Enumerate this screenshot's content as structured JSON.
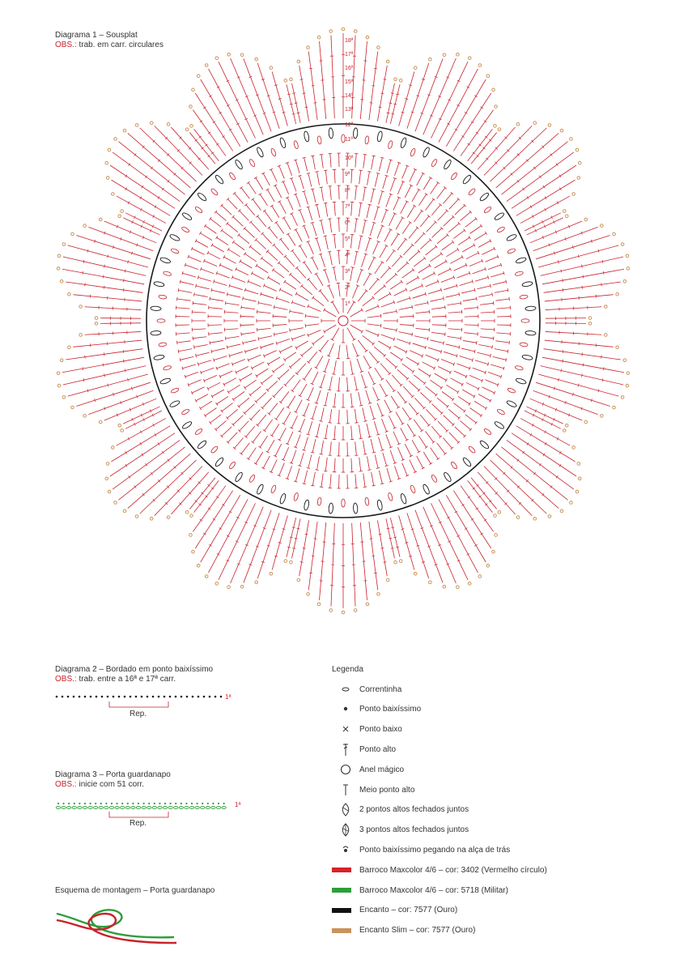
{
  "diagram1": {
    "title": "Diagrama 1 – Sousplat",
    "obs_label": "OBS.:",
    "obs_text": " trab. em carr. circulares",
    "round_labels": [
      "1ª",
      "2ª",
      "3ª",
      "4ª",
      "5ª",
      "6ª",
      "7ª",
      "8ª",
      "9ª",
      "10ª",
      "11ª",
      "12ª",
      "13ª",
      "14ª",
      "15ª",
      "16ª",
      "17ª",
      "18ª"
    ],
    "scallops": 14
  },
  "diagram2": {
    "title": "Diagrama 2 – Bordado em ponto baixíssimo",
    "obs_label": "OBS.:",
    "obs_text": " trab. entre a 16ª e 17ª carr.",
    "row_label": "1ª",
    "rep_label": "Rep."
  },
  "diagram3": {
    "title": "Diagrama 3 – Porta guardanapo",
    "obs_label": "OBS.:",
    "obs_text": " inicie com 51 corr.",
    "row_label": "1ª",
    "rep_label": "Rep."
  },
  "assembly": {
    "title": "Esquema de montagem – Porta guardanapo"
  },
  "legend": {
    "title": "Legenda",
    "items": [
      {
        "symbol": "chain-icon",
        "label": "Correntinha"
      },
      {
        "symbol": "slip-stitch-icon",
        "label": "Ponto baixíssimo"
      },
      {
        "symbol": "single-crochet-icon",
        "label": "Ponto baixo"
      },
      {
        "symbol": "double-crochet-icon",
        "label": "Ponto alto"
      },
      {
        "symbol": "magic-ring-icon",
        "label": "Anel mágico"
      },
      {
        "symbol": "half-double-crochet-icon",
        "label": "Meio ponto alto"
      },
      {
        "symbol": "dc2tog-icon",
        "label": "2 pontos altos fechados juntos"
      },
      {
        "symbol": "dc3tog-icon",
        "label": "3 pontos altos fechados juntos"
      },
      {
        "symbol": "back-loop-slip-stitch-icon",
        "label": "Ponto baixíssimo pegando na alça de trás"
      }
    ],
    "colors": [
      {
        "color": "#d6222a",
        "label": "Barroco Maxcolor 4/6 – cor: 3402 (Vermelho círculo)"
      },
      {
        "color": "#2f9e3a",
        "label": "Barroco Maxcolor 4/6 – cor: 5718 (Militar)"
      },
      {
        "color": "#111111",
        "label": "Encanto – cor: 7577 (Ouro)"
      },
      {
        "color": "#c9935a",
        "label": "Encanto Slim – cor: 7577 (Ouro)"
      }
    ]
  },
  "colors": {
    "red": "#c8222b",
    "green": "#2f9e3a",
    "black": "#1a1a1a",
    "gold": "#c9935a"
  }
}
